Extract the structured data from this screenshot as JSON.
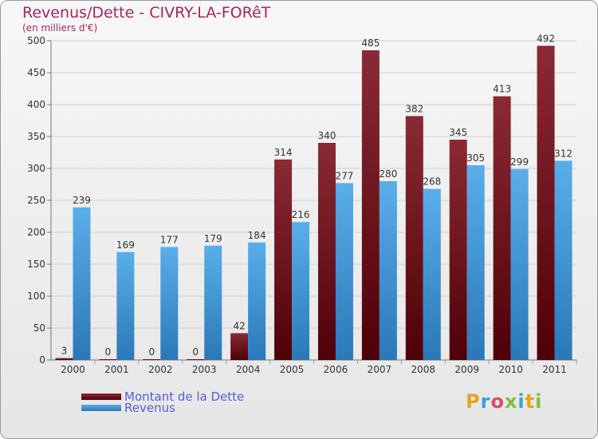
{
  "title": "Revenus/Dette - CIVRY-LA-FORêT",
  "subtitle": "(en milliers d'€)",
  "logo": {
    "text": "Proxiti",
    "colors": [
      "#e8a21e",
      "#3aa0d8",
      "#e04a6a",
      "#7cbf3a",
      "#3aa0d8",
      "#e8a21e",
      "#7cbf3a"
    ]
  },
  "colors": {
    "dette": "#6a0a12",
    "revenus": "#3d8fd6",
    "axis_text": "#333333"
  },
  "chart_data": {
    "type": "bar",
    "title": "Revenus/Dette - CIVRY-LA-FORêT",
    "subtitle": "(en milliers d'€)",
    "categories": [
      "2000",
      "2001",
      "2002",
      "2003",
      "2004",
      "2005",
      "2006",
      "2007",
      "2008",
      "2009",
      "2010",
      "2011"
    ],
    "series": [
      {
        "name": "Montant de la Dette",
        "color": "#6a0a12",
        "values": [
          3,
          0,
          0,
          0,
          42,
          314,
          340,
          485,
          382,
          345,
          413,
          492
        ]
      },
      {
        "name": "Revenus",
        "color": "#3d8fd6",
        "values": [
          239,
          169,
          177,
          179,
          184,
          216,
          277,
          280,
          268,
          305,
          299,
          312
        ]
      }
    ],
    "ylim": [
      0,
      500
    ],
    "yticks": [
      "0",
      "50",
      "100",
      "150",
      "200",
      "250",
      "300",
      "350",
      "400",
      "450",
      "500"
    ],
    "grid": true,
    "legend": "bottom-left"
  }
}
